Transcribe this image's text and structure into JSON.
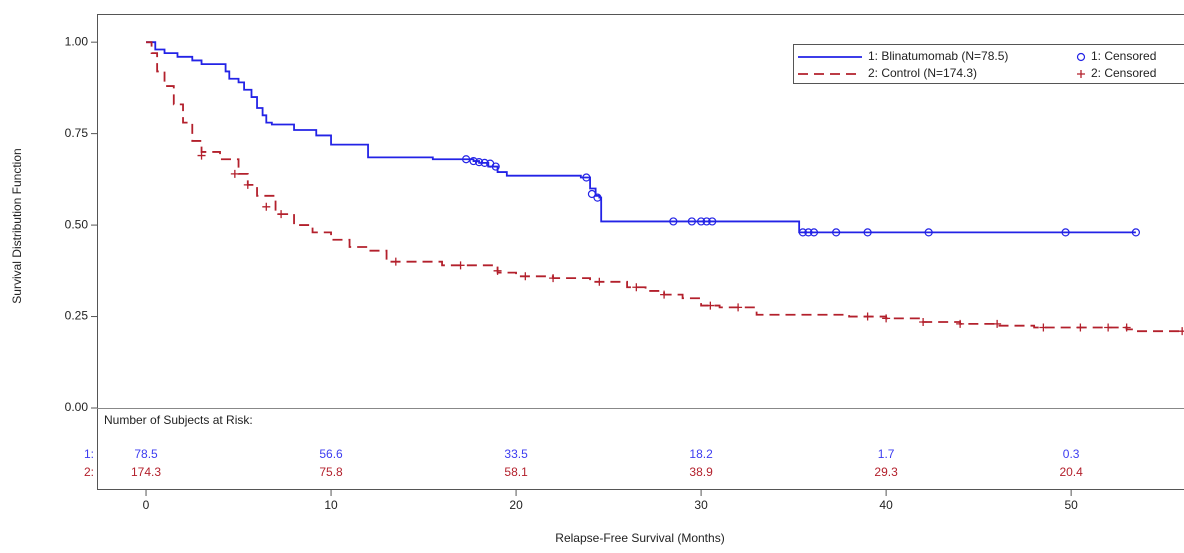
{
  "chart_data": {
    "type": "step",
    "y_label": "Survival Distribution Function",
    "x_label": "Relapse-Free Survival (Months)",
    "xlim": [
      -2.65,
      56.1
    ],
    "ylim": [
      0,
      1.077
    ],
    "xticks": [
      0,
      10,
      20,
      30,
      40,
      50
    ],
    "yticks": [
      {
        "value": 0,
        "label": "0.00"
      },
      0.25,
      {
        "value": 0.5,
        "label": "0.50"
      },
      0.75,
      {
        "value": 1,
        "label": "1.00"
      }
    ],
    "series": [
      {
        "name": "1: Blinatumomab (N=78.5)",
        "color": "#2323e6",
        "dash": "none",
        "x": [
          0,
          0.5,
          1,
          1.7,
          2.5,
          3,
          4.3,
          4.5,
          5,
          5.3,
          5.7,
          6,
          6.3,
          6.5,
          6.8,
          8,
          9.2,
          10,
          12,
          15.5,
          17.7,
          18,
          18.5,
          19,
          19.5,
          23.5,
          24,
          24.3,
          24.5,
          24.6,
          35.3,
          53.5
        ],
        "values": [
          1.0,
          0.98,
          0.97,
          0.96,
          0.95,
          0.94,
          0.92,
          0.9,
          0.89,
          0.87,
          0.85,
          0.82,
          0.8,
          0.78,
          0.775,
          0.76,
          0.745,
          0.72,
          0.685,
          0.68,
          0.675,
          0.67,
          0.66,
          0.645,
          0.635,
          0.63,
          0.6,
          0.58,
          0.575,
          0.51,
          0.48,
          0.48
        ],
        "censored": {
          "name": "1: Censored",
          "marker": "circle",
          "x": [
            17.3,
            17.7,
            18,
            18.3,
            18.6,
            18.9,
            23.8,
            24.1,
            24.4,
            28.5,
            29.5,
            30,
            30.3,
            30.6,
            35.5,
            35.8,
            36.1,
            37.3,
            39,
            42.3,
            49.7,
            53.5
          ],
          "values": [
            0.68,
            0.675,
            0.672,
            0.67,
            0.668,
            0.66,
            0.63,
            0.585,
            0.575,
            0.51,
            0.51,
            0.51,
            0.51,
            0.51,
            0.48,
            0.48,
            0.48,
            0.48,
            0.48,
            0.48,
            0.48,
            0.48
          ]
        }
      },
      {
        "name": "2: Control (N=174.3)",
        "color": "#b3202c",
        "dash": "10,6",
        "x": [
          0,
          0.3,
          0.6,
          1,
          1.5,
          2,
          2.5,
          3,
          4,
          5,
          5.5,
          6,
          7,
          8,
          9,
          10,
          11,
          12,
          13,
          15,
          16,
          18,
          19,
          20,
          22,
          24,
          26,
          27,
          28,
          29,
          30,
          31,
          33,
          38,
          40,
          42,
          44,
          46,
          48,
          50,
          53,
          53.5,
          56
        ],
        "values": [
          1.0,
          0.97,
          0.92,
          0.88,
          0.83,
          0.78,
          0.73,
          0.7,
          0.68,
          0.64,
          0.61,
          0.58,
          0.53,
          0.5,
          0.48,
          0.46,
          0.44,
          0.43,
          0.4,
          0.4,
          0.39,
          0.39,
          0.37,
          0.36,
          0.355,
          0.345,
          0.33,
          0.32,
          0.31,
          0.3,
          0.28,
          0.275,
          0.255,
          0.25,
          0.245,
          0.235,
          0.23,
          0.225,
          0.22,
          0.22,
          0.215,
          0.21,
          0.21
        ],
        "censored": {
          "name": "2: Censored",
          "marker": "plus",
          "x": [
            3,
            4.8,
            5.5,
            6.5,
            7.3,
            13.5,
            17,
            19,
            20.5,
            22,
            24.5,
            26.5,
            28,
            30.5,
            32,
            39,
            40,
            42,
            44,
            46,
            48.5,
            50.5,
            52,
            53,
            56
          ],
          "values": [
            0.69,
            0.64,
            0.61,
            0.55,
            0.53,
            0.4,
            0.39,
            0.375,
            0.36,
            0.355,
            0.345,
            0.33,
            0.31,
            0.28,
            0.275,
            0.25,
            0.245,
            0.235,
            0.23,
            0.23,
            0.22,
            0.22,
            0.22,
            0.22,
            0.21
          ]
        }
      }
    ],
    "risk_table": {
      "title": "Number of Subjects at Risk:",
      "rows": [
        {
          "label": "1:",
          "color": "#3c3cf0",
          "values": [
            78.5,
            56.6,
            33.5,
            18.2,
            1.7,
            0.3
          ]
        },
        {
          "label": "2:",
          "color": "#b3202c",
          "values": [
            174.3,
            75.8,
            58.1,
            38.9,
            29.3,
            20.4
          ]
        }
      ]
    }
  }
}
